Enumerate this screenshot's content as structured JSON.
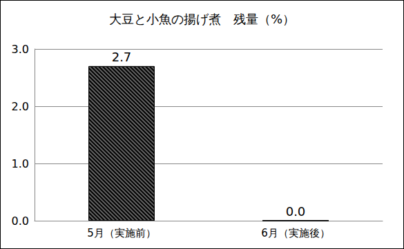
{
  "chart_data": {
    "type": "bar",
    "title": "大豆と小魚の揚げ煮　残量（%）",
    "categories": [
      "5月（実施前）",
      "6月（実施後）"
    ],
    "values": [
      2.7,
      0.0
    ],
    "value_labels": [
      "2.7",
      "0.0"
    ],
    "color": "#000000",
    "ylim": [
      0,
      3
    ],
    "yticks": [
      {
        "value": 0,
        "label": "0.0"
      },
      {
        "value": 1,
        "label": "1.0"
      },
      {
        "value": 2,
        "label": "2.0"
      },
      {
        "value": 3,
        "label": "3.0"
      }
    ],
    "grid": true,
    "data_labels": true
  }
}
